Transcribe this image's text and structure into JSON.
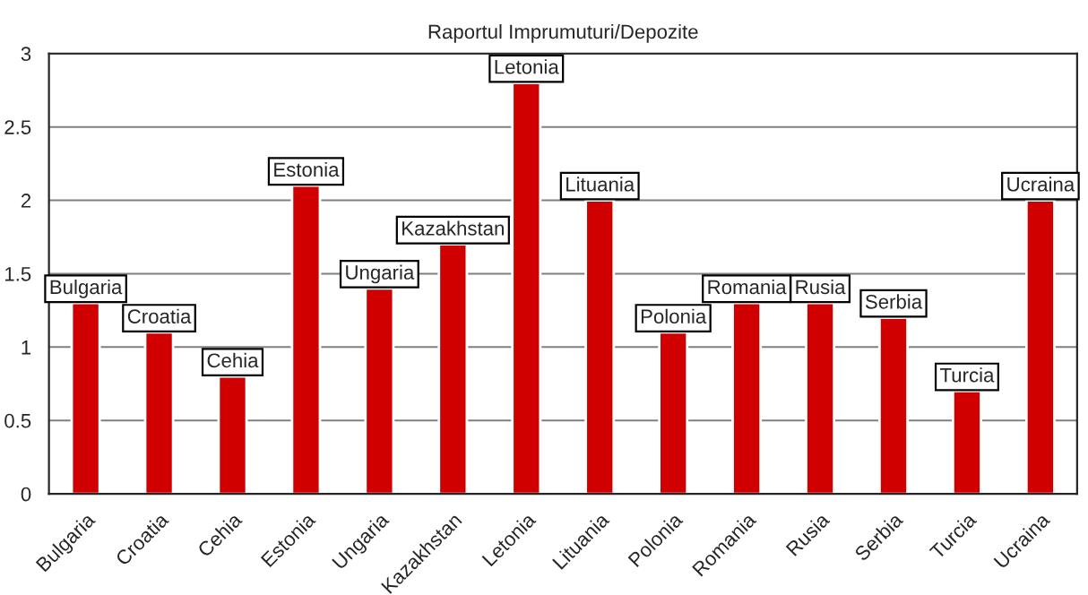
{
  "chart_data": {
    "type": "bar",
    "title": "Raportul Imprumuturi/Depozite",
    "categories": [
      "Bulgaria",
      "Croatia",
      "Cehia",
      "Estonia",
      "Ungaria",
      "Kazakhstan",
      "Letonia",
      "Lituania",
      "Polonia",
      "Romania",
      "Rusia",
      "Serbia",
      "Turcia",
      "Ucraina"
    ],
    "values": [
      1.3,
      1.1,
      0.8,
      2.1,
      1.4,
      1.7,
      2.8,
      2.0,
      1.1,
      1.3,
      1.3,
      1.2,
      0.7,
      2.0
    ],
    "color": "#d00000",
    "ylim": [
      0,
      3
    ],
    "yticks": [
      0,
      0.5,
      1,
      1.5,
      2,
      2.5,
      3
    ],
    "grid": "y",
    "annotations": [
      {
        "text": "Bulgaria",
        "x": "Bulgaria",
        "y": 1.3
      },
      {
        "text": "Croatia",
        "x": "Croatia",
        "y": 1.1
      },
      {
        "text": "Cehia",
        "x": "Cehia",
        "y": 0.8
      },
      {
        "text": "Estonia",
        "x": "Estonia",
        "y": 2.1
      },
      {
        "text": "Ungaria",
        "x": "Ungaria",
        "y": 1.4
      },
      {
        "text": "Kazakhstan",
        "x": "Kazakhstan",
        "y": 1.7
      },
      {
        "text": "Letonia",
        "x": "Letonia",
        "y": 2.8
      },
      {
        "text": "Lituania",
        "x": "Lituania",
        "y": 2.0
      },
      {
        "text": "Polonia",
        "x": "Polonia",
        "y": 1.1
      },
      {
        "text": "Romania",
        "x": "Romania",
        "y": 1.3
      },
      {
        "text": "Rusia",
        "x": "Rusia",
        "y": 1.3
      },
      {
        "text": "Serbia",
        "x": "Serbia",
        "y": 1.2
      },
      {
        "text": "Turcia",
        "x": "Turcia",
        "y": 0.7
      },
      {
        "text": "Ucraina",
        "x": "Ucraina",
        "y": 2.0
      }
    ]
  }
}
